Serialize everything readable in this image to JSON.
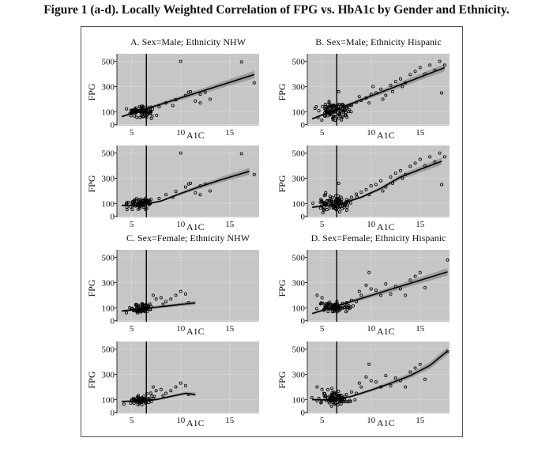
{
  "figure": {
    "title": "Figure 1 (a-d). Locally Weighted Correlation of FPG vs. HbA1c by Gender and Ethnicity."
  },
  "colors": {
    "panel_bg": "#c6c6c6",
    "grid": "#d9d9d9",
    "line": "#000000",
    "band": "#7a7a7a"
  },
  "chart_data": [
    {
      "type": "scatter",
      "title": "A. Sex=Male; Ethnicity NHW",
      "xlabel": "A1C",
      "ylabel": "FPG",
      "xlim": [
        3.5,
        18
      ],
      "ylim": [
        -10,
        560
      ],
      "xticks": [
        "5",
        "10",
        "15"
      ],
      "yticks": [
        "0",
        "100",
        "300",
        "500"
      ],
      "vline_x": 6.5,
      "fit": "linear",
      "fit_line": [
        [
          4,
          62
        ],
        [
          17.5,
          395
        ]
      ],
      "cluster": {
        "cx": 6,
        "cy": 100,
        "sx": 1.1,
        "sy": 22,
        "n": 80
      },
      "points": [
        [
          9.5,
          195
        ],
        [
          10.8,
          255
        ],
        [
          11,
          260
        ],
        [
          12,
          240
        ],
        [
          12.5,
          255
        ],
        [
          11.5,
          185
        ],
        [
          12,
          170
        ],
        [
          13,
          200
        ],
        [
          10,
          500
        ],
        [
          16.2,
          495
        ],
        [
          17.5,
          330
        ],
        [
          10.5,
          230
        ],
        [
          8.5,
          170
        ],
        [
          9.2,
          150
        ],
        [
          7.8,
          140
        ]
      ]
    },
    {
      "type": "scatter",
      "title": "",
      "xlabel": "A1C",
      "ylabel": "FPG",
      "xlim": [
        3.5,
        18
      ],
      "ylim": [
        -10,
        560
      ],
      "xticks": [
        "5",
        "10",
        "15"
      ],
      "yticks": [
        "0",
        "100",
        "300",
        "500"
      ],
      "vline_x": 6.5,
      "fit": "loess",
      "fit_line": [
        [
          4,
          85
        ],
        [
          6,
          88
        ],
        [
          8,
          120
        ],
        [
          10,
          180
        ],
        [
          12,
          235
        ],
        [
          14,
          285
        ],
        [
          17,
          355
        ]
      ],
      "cluster": {
        "cx": 6,
        "cy": 100,
        "sx": 1.1,
        "sy": 22,
        "n": 80
      },
      "points": [
        [
          9.5,
          195
        ],
        [
          10.8,
          255
        ],
        [
          11,
          260
        ],
        [
          12,
          240
        ],
        [
          12.5,
          255
        ],
        [
          11.5,
          185
        ],
        [
          12,
          170
        ],
        [
          13,
          200
        ],
        [
          10,
          500
        ],
        [
          16.2,
          495
        ],
        [
          17.5,
          330
        ],
        [
          10.5,
          230
        ],
        [
          8.5,
          170
        ],
        [
          9.2,
          150
        ],
        [
          7.8,
          140
        ]
      ]
    },
    {
      "type": "scatter",
      "title": "B. Sex=Male; Ethnicity Hispanic",
      "xlabel": "A1C",
      "ylabel": "FPG",
      "xlim": [
        3.5,
        18
      ],
      "ylim": [
        -10,
        560
      ],
      "xticks": [
        "5",
        "10",
        "15"
      ],
      "yticks": [
        "0",
        "100",
        "300",
        "500"
      ],
      "vline_x": 6.5,
      "fit": "linear",
      "fit_line": [
        [
          4,
          45
        ],
        [
          17.5,
          450
        ]
      ],
      "cluster": {
        "cx": 6.3,
        "cy": 110,
        "sx": 1.3,
        "sy": 30,
        "n": 100
      },
      "points": [
        [
          8,
          150
        ],
        [
          8.5,
          175
        ],
        [
          9,
          190
        ],
        [
          9.5,
          210
        ],
        [
          10,
          240
        ],
        [
          10.5,
          250
        ],
        [
          11,
          280
        ],
        [
          11.5,
          230
        ],
        [
          12,
          310
        ],
        [
          12.5,
          340
        ],
        [
          13,
          360
        ],
        [
          13.5,
          330
        ],
        [
          14,
          395
        ],
        [
          14.5,
          420
        ],
        [
          15,
          450
        ],
        [
          15.5,
          400
        ],
        [
          16,
          470
        ],
        [
          16.5,
          430
        ],
        [
          17,
          500
        ],
        [
          17.5,
          470
        ],
        [
          17.2,
          250
        ],
        [
          7.5,
          130
        ],
        [
          9.8,
          170
        ],
        [
          11.2,
          200
        ],
        [
          12.2,
          260
        ],
        [
          13.2,
          300
        ],
        [
          6.7,
          260
        ],
        [
          8.8,
          220
        ],
        [
          10.2,
          300
        ]
      ]
    },
    {
      "type": "scatter",
      "title": "",
      "xlabel": "A1C",
      "ylabel": "FPG",
      "xlim": [
        3.5,
        18
      ],
      "ylim": [
        -10,
        560
      ],
      "xticks": [
        "5",
        "10",
        "15"
      ],
      "yticks": [
        "0",
        "100",
        "300",
        "500"
      ],
      "vline_x": 6.5,
      "fit": "loess",
      "fit_line": [
        [
          4,
          70
        ],
        [
          5.5,
          85
        ],
        [
          7,
          100
        ],
        [
          9,
          150
        ],
        [
          11,
          220
        ],
        [
          13,
          310
        ],
        [
          15,
          370
        ],
        [
          17.2,
          435
        ]
      ],
      "cluster": {
        "cx": 6.3,
        "cy": 105,
        "sx": 1.3,
        "sy": 28,
        "n": 100
      },
      "points": [
        [
          8,
          150
        ],
        [
          8.5,
          175
        ],
        [
          9,
          190
        ],
        [
          9.5,
          210
        ],
        [
          10,
          240
        ],
        [
          10.5,
          250
        ],
        [
          11,
          280
        ],
        [
          11.5,
          230
        ],
        [
          12,
          310
        ],
        [
          12.5,
          340
        ],
        [
          13,
          360
        ],
        [
          13.5,
          330
        ],
        [
          14,
          395
        ],
        [
          14.5,
          420
        ],
        [
          15,
          450
        ],
        [
          15.5,
          400
        ],
        [
          16,
          470
        ],
        [
          16.5,
          430
        ],
        [
          17,
          500
        ],
        [
          17.5,
          470
        ],
        [
          17.2,
          250
        ],
        [
          7.5,
          130
        ],
        [
          9.8,
          170
        ],
        [
          11.2,
          200
        ],
        [
          12.2,
          260
        ],
        [
          13.2,
          300
        ],
        [
          6.7,
          260
        ]
      ]
    },
    {
      "type": "scatter",
      "title": "C. Sex=Female; Ethnicity NHW",
      "xlabel": "A1C",
      "ylabel": "FPG",
      "xlim": [
        3.5,
        18
      ],
      "ylim": [
        -10,
        560
      ],
      "xticks": [
        "5",
        "10",
        "15"
      ],
      "yticks": [
        "0",
        "100",
        "300",
        "500"
      ],
      "vline_x": 6.5,
      "fit": "linear",
      "fit_line": [
        [
          4,
          75
        ],
        [
          11.5,
          140
        ]
      ],
      "cluster": {
        "cx": 6,
        "cy": 95,
        "sx": 1.0,
        "sy": 18,
        "n": 70
      },
      "points": [
        [
          7.5,
          170
        ],
        [
          8,
          180
        ],
        [
          8.5,
          150
        ],
        [
          9,
          170
        ],
        [
          9.5,
          200
        ],
        [
          10,
          230
        ],
        [
          10.5,
          210
        ],
        [
          10.8,
          140
        ],
        [
          7.2,
          200
        ],
        [
          8.2,
          130
        ]
      ]
    },
    {
      "type": "scatter",
      "title": "",
      "xlabel": "A1C",
      "ylabel": "FPG",
      "xlim": [
        3.5,
        18
      ],
      "ylim": [
        -10,
        560
      ],
      "xticks": [
        "5",
        "10",
        "15"
      ],
      "yticks": [
        "0",
        "100",
        "300",
        "500"
      ],
      "vline_x": 6.5,
      "fit": "loess",
      "fit_line": [
        [
          4,
          85
        ],
        [
          6,
          90
        ],
        [
          7.5,
          100
        ],
        [
          9,
          125
        ],
        [
          10.5,
          150
        ],
        [
          11.5,
          140
        ]
      ],
      "cluster": {
        "cx": 6,
        "cy": 95,
        "sx": 1.0,
        "sy": 18,
        "n": 70
      },
      "points": [
        [
          7.5,
          170
        ],
        [
          8,
          180
        ],
        [
          8.5,
          150
        ],
        [
          9,
          170
        ],
        [
          9.5,
          200
        ],
        [
          10,
          230
        ],
        [
          10.5,
          210
        ],
        [
          10.8,
          140
        ],
        [
          7.2,
          200
        ],
        [
          8.2,
          130
        ]
      ]
    },
    {
      "type": "scatter",
      "title": "D. Sex=Female; Ethnicity Hispanic",
      "xlabel": "A1C",
      "ylabel": "FPG",
      "xlim": [
        3.5,
        18
      ],
      "ylim": [
        -10,
        560
      ],
      "xticks": [
        "5",
        "10",
        "15"
      ],
      "yticks": [
        "0",
        "100",
        "300",
        "500"
      ],
      "vline_x": 6.5,
      "fit": "linear",
      "fit_line": [
        [
          4,
          55
        ],
        [
          17.8,
          385
        ]
      ],
      "cluster": {
        "cx": 6.3,
        "cy": 105,
        "sx": 1.2,
        "sy": 25,
        "n": 90
      },
      "points": [
        [
          8,
          160
        ],
        [
          8.5,
          150
        ],
        [
          9,
          200
        ],
        [
          9.5,
          280
        ],
        [
          10,
          250
        ],
        [
          10.5,
          240
        ],
        [
          11,
          200
        ],
        [
          11.5,
          290
        ],
        [
          12,
          210
        ],
        [
          12.5,
          270
        ],
        [
          13,
          250
        ],
        [
          13.5,
          200
        ],
        [
          14,
          320
        ],
        [
          14.5,
          350
        ],
        [
          15,
          380
        ],
        [
          15.5,
          260
        ],
        [
          17.8,
          480
        ],
        [
          7.5,
          140
        ],
        [
          9.8,
          380
        ],
        [
          4.5,
          200
        ],
        [
          5,
          180
        ],
        [
          8.8,
          230
        ]
      ]
    },
    {
      "type": "scatter",
      "title": "",
      "xlabel": "A1C",
      "ylabel": "FPG",
      "xlim": [
        3.5,
        18
      ],
      "ylim": [
        -10,
        560
      ],
      "xticks": [
        "5",
        "10",
        "15"
      ],
      "yticks": [
        "0",
        "100",
        "300",
        "500"
      ],
      "vline_x": 6.5,
      "fit": "loess",
      "fit_line": [
        [
          4,
          100
        ],
        [
          6,
          95
        ],
        [
          8,
          125
        ],
        [
          10,
          175
        ],
        [
          12,
          230
        ],
        [
          14,
          290
        ],
        [
          16,
          370
        ],
        [
          17.8,
          485
        ]
      ],
      "cluster": {
        "cx": 6.3,
        "cy": 105,
        "sx": 1.2,
        "sy": 25,
        "n": 90
      },
      "points": [
        [
          8,
          160
        ],
        [
          8.5,
          150
        ],
        [
          9,
          200
        ],
        [
          9.5,
          280
        ],
        [
          10,
          250
        ],
        [
          10.5,
          240
        ],
        [
          11,
          200
        ],
        [
          11.5,
          290
        ],
        [
          12,
          210
        ],
        [
          12.5,
          270
        ],
        [
          13,
          250
        ],
        [
          13.5,
          200
        ],
        [
          14,
          320
        ],
        [
          14.5,
          350
        ],
        [
          15,
          380
        ],
        [
          15.5,
          260
        ],
        [
          17.8,
          480
        ],
        [
          7.5,
          140
        ],
        [
          9.8,
          380
        ],
        [
          4.5,
          200
        ],
        [
          5,
          180
        ],
        [
          8.8,
          230
        ]
      ]
    }
  ]
}
